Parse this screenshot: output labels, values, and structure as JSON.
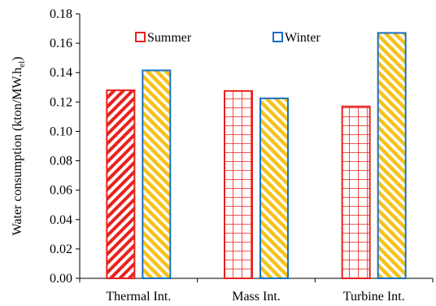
{
  "chart_data": {
    "type": "bar",
    "title": "",
    "xlabel": "",
    "ylabel": "Water consumption (kton/MW.h",
    "ylabel_subscript": "el",
    "ylabel_close": ")",
    "ylim": [
      0,
      0.18
    ],
    "yticks": [
      "0.00",
      "0.02",
      "0.04",
      "0.06",
      "0.08",
      "0.10",
      "0.12",
      "0.14",
      "0.16",
      "0.18"
    ],
    "categories": [
      "Thermal Int.",
      "Mass Int.",
      "Turbine Int."
    ],
    "series": [
      {
        "name": "Summer",
        "values": [
          0.128,
          0.1275,
          0.117
        ],
        "color": "#e8221e",
        "pattern": "mixed"
      },
      {
        "name": "Winter",
        "values": [
          0.1415,
          0.1225,
          0.167
        ],
        "color": "#1a6fc4",
        "fill": "#f7c21a"
      }
    ],
    "grid": false,
    "legend": "top"
  }
}
